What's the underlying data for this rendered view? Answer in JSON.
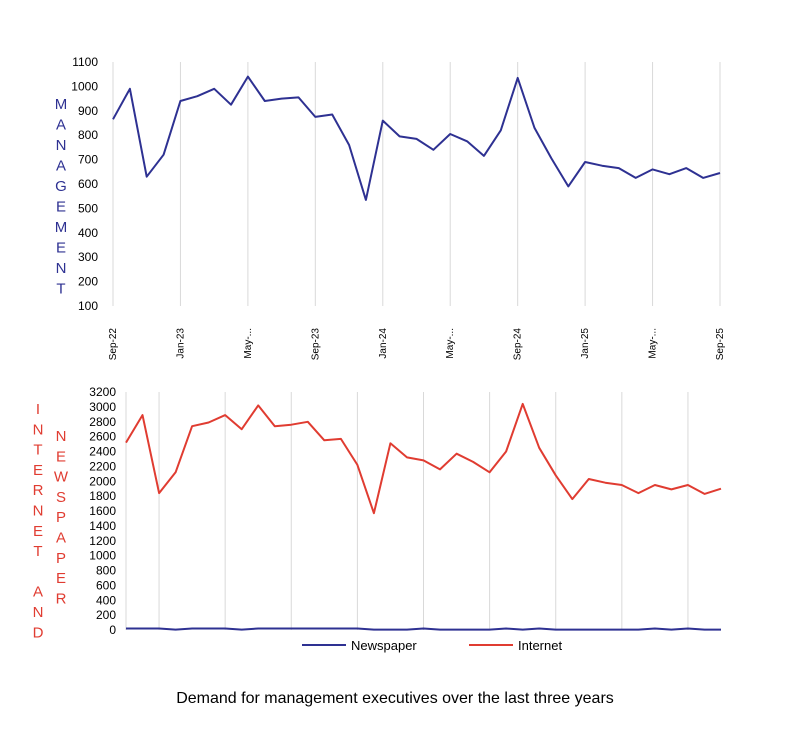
{
  "chart_data": [
    {
      "type": "line",
      "ylabel": "MANAGEMENT",
      "ylim": [
        100,
        1100
      ],
      "yticks": [
        "100",
        "200",
        "300",
        "400",
        "500",
        "600",
        "700",
        "800",
        "900",
        "1000",
        "1100"
      ],
      "xtick_labels": [
        "Sep-22",
        "Jan-23",
        "May-...",
        "Sep-23",
        "Jan-24",
        "May-...",
        "Sep-24",
        "Jan-25",
        "May-...",
        "Sep-25"
      ],
      "grid": "vertical",
      "colors": {
        "line": "#2e3192",
        "axis_label": "#2e3192"
      },
      "series": [
        {
          "values": [
            865,
            990,
            630,
            720,
            940,
            960,
            990,
            925,
            1040,
            940,
            950,
            955,
            875,
            885,
            760,
            535,
            860,
            795,
            785,
            740,
            805,
            775,
            715,
            820,
            1035,
            830,
            705,
            590,
            690,
            675,
            665,
            625,
            660,
            640,
            665,
            625,
            645
          ]
        }
      ]
    },
    {
      "type": "line",
      "ylabel_left": "INTERNET AND",
      "ylabel_right": "NEWSPAPER",
      "ylim": [
        0,
        3200
      ],
      "yticks": [
        "0",
        "200",
        "400",
        "600",
        "800",
        "1000",
        "1200",
        "1400",
        "1600",
        "1800",
        "2000",
        "2200",
        "2400",
        "2600",
        "2800",
        "3000",
        "3200"
      ],
      "grid": "vertical",
      "legend_position": "bottom",
      "colors": {
        "axis_label": "#e03c31"
      },
      "series": [
        {
          "name": "Newspaper",
          "color": "#2e3192",
          "values": [
            20,
            20,
            20,
            5,
            20,
            20,
            20,
            5,
            20,
            20,
            20,
            20,
            20,
            20,
            20,
            5,
            5,
            5,
            20,
            5,
            5,
            5,
            5,
            20,
            5,
            20,
            5,
            5,
            5,
            5,
            5,
            5,
            20,
            5,
            20,
            5,
            5
          ]
        },
        {
          "name": "Internet",
          "color": "#e03c31",
          "values": [
            2520,
            2890,
            1840,
            2120,
            2740,
            2790,
            2890,
            2700,
            3020,
            2740,
            2760,
            2800,
            2550,
            2570,
            2220,
            1570,
            2510,
            2320,
            2280,
            2160,
            2370,
            2260,
            2120,
            2400,
            3040,
            2450,
            2080,
            1760,
            2030,
            1980,
            1950,
            1840,
            1950,
            1890,
            1950,
            1830,
            1900
          ]
        }
      ]
    }
  ],
  "caption": "Demand for management executives over the last three years"
}
